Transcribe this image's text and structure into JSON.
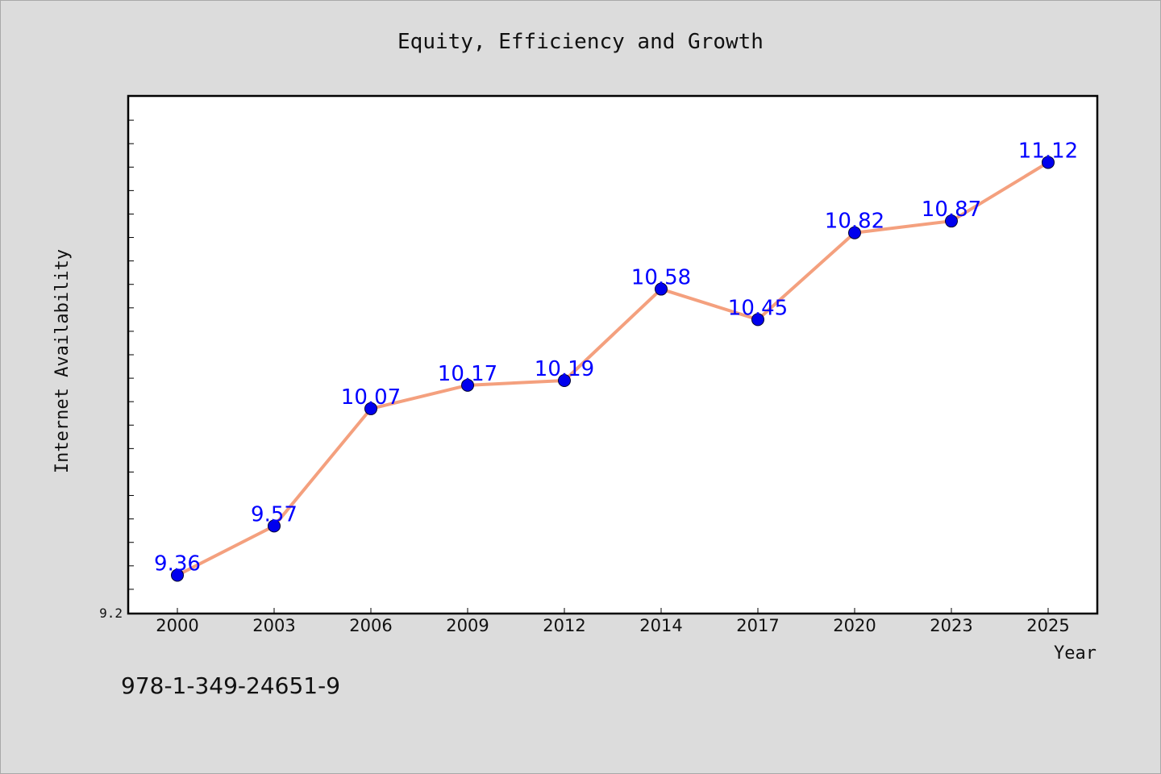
{
  "chart_data": {
    "type": "line",
    "title": "Equity, Efficiency and Growth",
    "xlabel": "Year",
    "ylabel": "Internet Availability",
    "categories": [
      "2000",
      "2003",
      "2006",
      "2009",
      "2012",
      "2014",
      "2017",
      "2020",
      "2023",
      "2025"
    ],
    "series": [
      {
        "values": [
          9.36,
          9.57,
          10.07,
          10.17,
          10.19,
          10.58,
          10.45,
          10.82,
          10.87,
          11.12
        ]
      }
    ],
    "data_labels": [
      "9.36",
      "9.57",
      "10.07",
      "10.17",
      "10.19",
      "10.58",
      "10.45",
      "10.82",
      "10.87",
      "11.12"
    ],
    "y_tick_labels": [
      "9.2"
    ],
    "ylim": [
      9.2,
      11.4
    ],
    "grid": false,
    "legend": "none",
    "colors": {
      "line": "#f4a07e",
      "marker": "#0000ee",
      "data_label": "#0000ff",
      "background": "#dcdcdc",
      "plot_background": "#ffffff"
    }
  },
  "footer": {
    "isbn": "978-1-349-24651-9"
  }
}
